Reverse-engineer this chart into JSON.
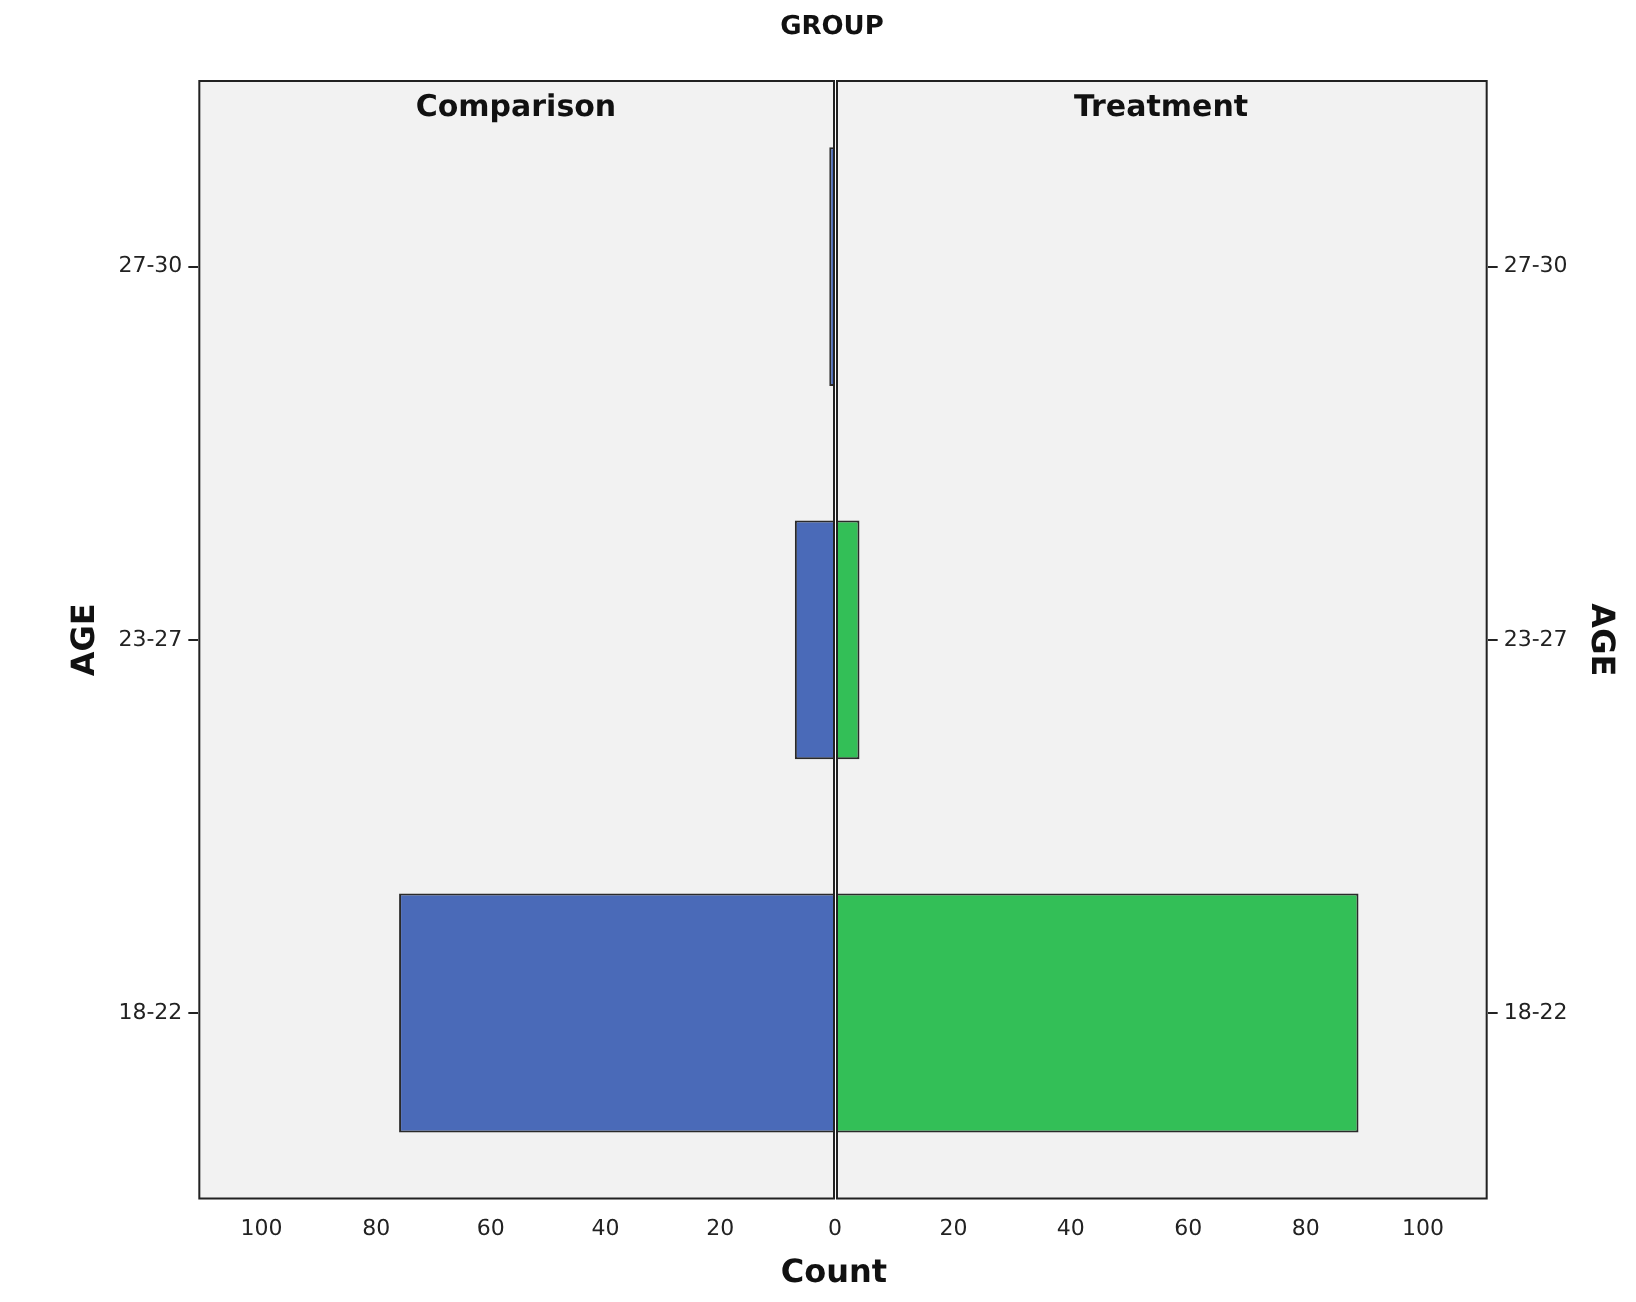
{
  "chart_data": [
    {
      "type": "bar",
      "orientation": "horizontal",
      "title": "Comparison",
      "annotations": [
        "GROUP"
      ],
      "xlabel": "Count",
      "ylabel": "AGE",
      "categories": [
        "27-30",
        "23-27",
        "18-22"
      ],
      "values": [
        1,
        7,
        76
      ],
      "color": "#4a6ab8",
      "xlim": [
        111,
        0
      ],
      "xticks": [
        100,
        80,
        60,
        40,
        20,
        0
      ]
    },
    {
      "type": "bar",
      "orientation": "horizontal",
      "title": "Treatment",
      "y2label": "AGE",
      "categories": [
        "27-30",
        "23-27",
        "18-22"
      ],
      "series": [
        {
          "axis": "y2",
          "color": "#33bf57",
          "values": [
            0,
            4,
            89
          ]
        }
      ],
      "xlim": [
        0,
        111
      ],
      "xticks": [
        {
          "value": 0,
          "label": null
        },
        20,
        40,
        60,
        80,
        100
      ]
    }
  ]
}
